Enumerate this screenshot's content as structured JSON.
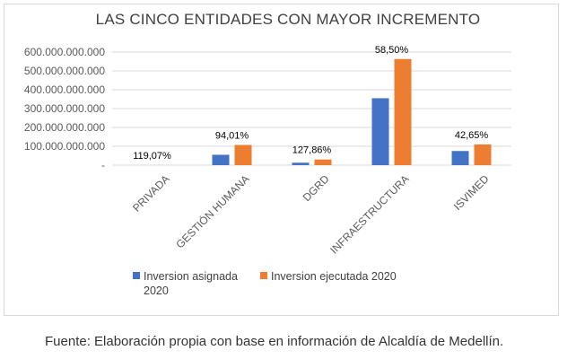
{
  "caption": "Fuente: Elaboración propia con base en información de Alcaldía de Medellín.",
  "chart_data": {
    "type": "bar",
    "title": "LAS CINCO ENTIDADES CON MAYOR INCREMENTO",
    "categories": [
      "PRIVADA",
      "GESTIÓN HUMANA",
      "DGRD",
      "INFRAESTRUCTURA",
      "ISVIMED"
    ],
    "series": [
      {
        "name": "Inversion asignada 2020",
        "legend_lines": [
          "Inversion asignada",
          "2020"
        ],
        "color": "#4472C4",
        "values": [
          0,
          55000000000,
          13000000000,
          355000000000,
          75000000000
        ]
      },
      {
        "name": "Inversion ejecutada 2020",
        "legend_lines": [
          "Inversion ejecutada 2020"
        ],
        "color": "#ED7D31",
        "values": [
          0,
          107000000000,
          30000000000,
          563000000000,
          110000000000
        ]
      }
    ],
    "data_labels": [
      "119,07%",
      "94,01%",
      "127,86%",
      "58,50%",
      "42,65%"
    ],
    "yticks": [
      0,
      100000000000,
      200000000000,
      300000000000,
      400000000000,
      500000000000,
      600000000000
    ],
    "ytick_labels": [
      "-",
      "100.000.000.000",
      "200.000.000.000",
      "300.000.000.000",
      "400.000.000.000",
      "500.000.000.000",
      "600.000.000.000"
    ],
    "ylim": [
      0,
      600000000000
    ],
    "grid": true,
    "legend": "bottom"
  }
}
